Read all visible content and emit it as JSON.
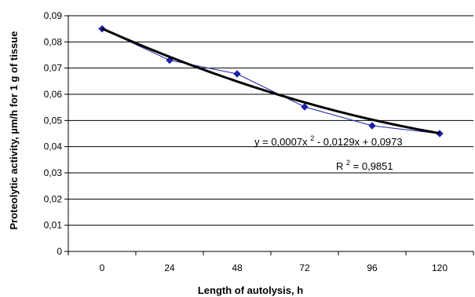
{
  "chart_data": {
    "type": "line",
    "title": "",
    "xlabel": "Length of autolysis, h",
    "ylabel": "Proteolytic activity, µm/h for 1 g of tissue",
    "x_tick_labels": [
      "0",
      "24",
      "48",
      "72",
      "96",
      "120"
    ],
    "y_tick_labels": [
      "0",
      "0,01",
      "0,02",
      "0,03",
      "0,04",
      "0,05",
      "0,06",
      "0,07",
      "0,08",
      "0,09"
    ],
    "ylim": [
      0,
      0.09
    ],
    "grid": "horizontal",
    "legend": "none",
    "series": [
      {
        "x": [
          "0",
          "24",
          "48",
          "72",
          "96",
          "120"
        ],
        "values": [
          0.085,
          0.073,
          0.0678,
          0.0552,
          0.048,
          0.045
        ],
        "color": "#1f1faa",
        "marker": "diamond"
      }
    ],
    "trendline": {
      "type": "polynomial",
      "order": 2,
      "coefficients": [
        0.0007,
        -0.0129,
        0.0973
      ],
      "color": "#000000"
    },
    "annotations": {
      "equation": {
        "prefix": "y = 0,0007x",
        "sup1": "2",
        "suffix": " - 0,0129x + 0,0973"
      },
      "r_squared": {
        "prefix": "R",
        "sup": "2",
        "suffix": " = 0,9851"
      }
    }
  }
}
